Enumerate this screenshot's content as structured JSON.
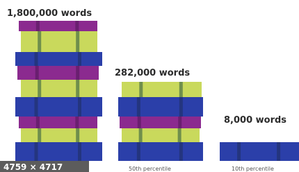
{
  "columns": [
    {
      "label": "1,800,000 words"
    },
    {
      "label": "282,000 words",
      "caption": "50th percentile"
    },
    {
      "label": "8,000 words",
      "caption": "10th percentile"
    }
  ],
  "badge": "4759 × 4717"
}
